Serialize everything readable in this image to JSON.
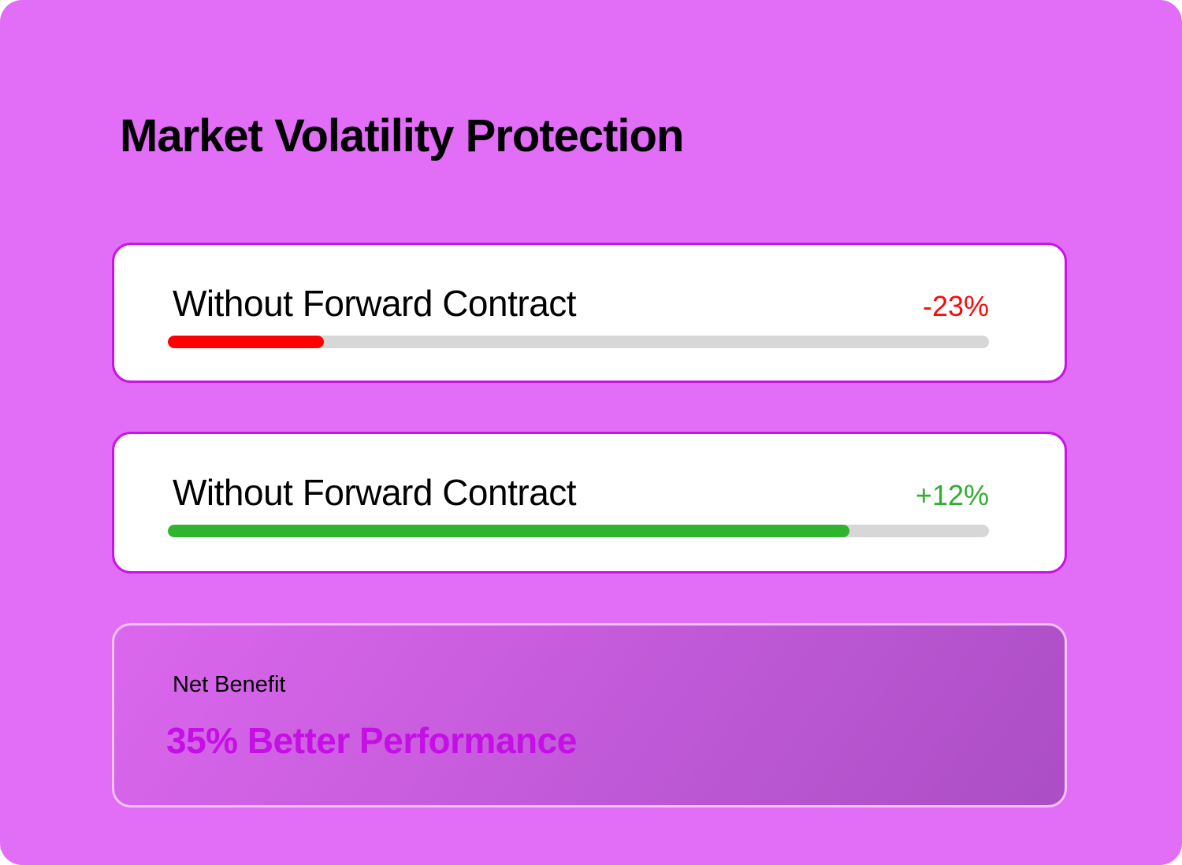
{
  "header": {
    "title": "Market Volatility Protection"
  },
  "cards": [
    {
      "label": "Without Forward Contract",
      "value": "-23%",
      "value_color": "#F70B0B",
      "bar_color": "#FF0000",
      "bar_fill_percent": 19
    },
    {
      "label": "Without Forward Contract",
      "value": "+12%",
      "value_color": "#2FAE2F",
      "bar_color": "#2EB42E",
      "bar_fill_percent": 83
    }
  ],
  "summary": {
    "label": "Net Benefit",
    "value": "35% Better Performance",
    "value_color": "#C50FE6"
  },
  "colors": {
    "page_background": "#E26EF7",
    "card_border": "#C813E9",
    "track": "#D7D7D7",
    "summary_border": "#F2C2F6",
    "summary_gradient_start": "#DB67ED",
    "summary_gradient_end": "#AB4EC5"
  },
  "chart_data": {
    "type": "bar",
    "title": "Market Volatility Protection",
    "categories": [
      "Without Forward Contract",
      "Without Forward Contract"
    ],
    "values": [
      -23,
      12
    ],
    "value_labels": [
      "-23%",
      "+12%"
    ],
    "bar_fill_fractions_of_track": [
      0.19,
      0.83
    ],
    "bar_colors": [
      "#FF0000",
      "#2EB42E"
    ],
    "annotations": [
      "Net Benefit: 35% Better Performance"
    ],
    "legend": "none",
    "grid": "off"
  }
}
